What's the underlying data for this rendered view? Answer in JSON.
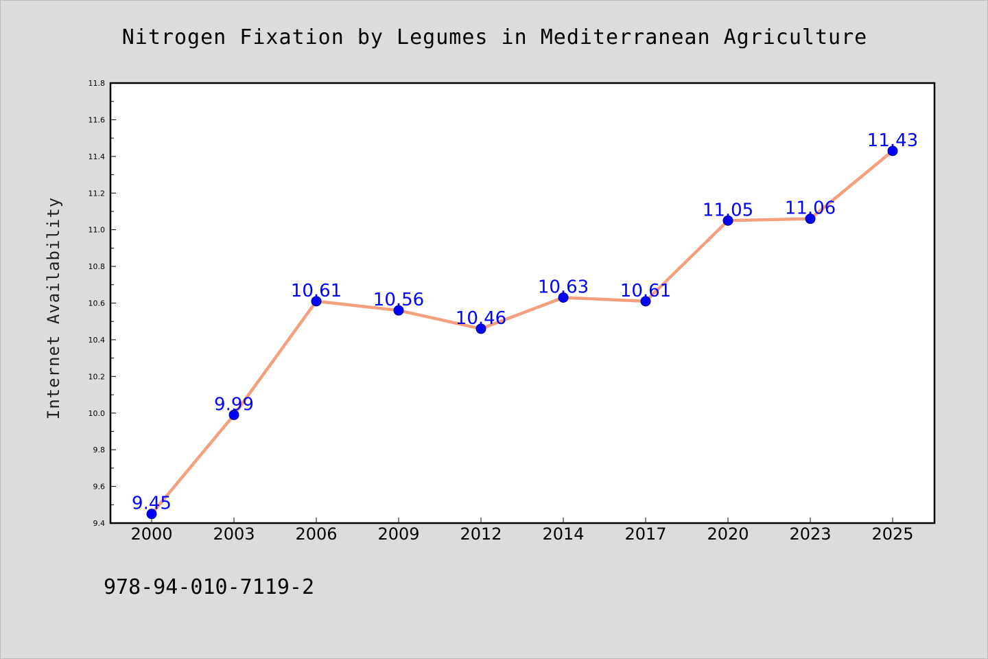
{
  "chart_data": {
    "type": "line",
    "title": "Nitrogen Fixation by Legumes in Mediterranean Agriculture",
    "xlabel": "",
    "ylabel": "Internet Availability",
    "categories": [
      "2000",
      "2003",
      "2006",
      "2009",
      "2012",
      "2014",
      "2017",
      "2020",
      "2023",
      "2025"
    ],
    "series": [
      {
        "values": [
          9.45,
          9.99,
          10.61,
          10.56,
          10.46,
          10.63,
          10.61,
          11.05,
          11.06,
          11.43
        ],
        "labels": [
          "9.45",
          "9.99",
          "10.61",
          "10.56",
          "10.46",
          "10.63",
          "10.61",
          "11.05",
          "11.06",
          "11.43"
        ],
        "line_color": "#f4a07e",
        "marker_color": "#0000ff"
      }
    ],
    "ylim": [
      9.4,
      11.8
    ],
    "yticks": [
      "9.4",
      "9.6",
      "9.8",
      "10.0",
      "10.2",
      "10.4",
      "10.6",
      "10.8",
      "11.0",
      "11.2",
      "11.4",
      "11.6",
      "11.8"
    ],
    "grid": false,
    "legend": "none"
  },
  "footer": {
    "isbn": "978-94-010-7119-2"
  },
  "colors": {
    "background": "#dcdcdc",
    "plot_background": "#ffffff",
    "line": "#f4a07e",
    "marker": "#0000ff",
    "data_label": "#0000ff"
  }
}
